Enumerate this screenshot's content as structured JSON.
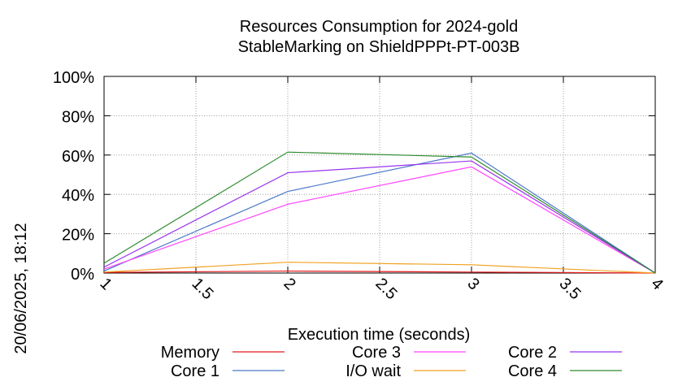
{
  "chart_data": {
    "type": "line",
    "title": "Resources Consumption for 2024-gold",
    "subtitle": "StableMarking on ShieldPPPt-PT-003B",
    "xlabel": "Execution time (seconds)",
    "ylabel": "",
    "timestamp": "20/06/2025, 18:12",
    "x": [
      1,
      2,
      3,
      4
    ],
    "xlim": [
      1,
      4
    ],
    "ylim": [
      0,
      100
    ],
    "xticks": [
      "1",
      "1.5",
      "2",
      "2.5",
      "3",
      "3.5",
      "4"
    ],
    "yticks": [
      "0%",
      "20%",
      "40%",
      "60%",
      "80%",
      "100%"
    ],
    "grid": true,
    "legend_position": "bottom",
    "series": [
      {
        "name": "Memory",
        "color": "#e41a1c",
        "values": [
          0.3,
          1.0,
          0.5,
          0
        ]
      },
      {
        "name": "Core 1",
        "color": "#4a78c9",
        "values": [
          1,
          41.5,
          61,
          0
        ]
      },
      {
        "name": "Core 3",
        "color": "#ff44ff",
        "values": [
          2,
          35,
          54,
          0
        ]
      },
      {
        "name": "I/O wait",
        "color": "#f0a020",
        "values": [
          0.5,
          5.5,
          4.2,
          0
        ]
      },
      {
        "name": "Core 2",
        "color": "#9933ee",
        "values": [
          3,
          51,
          57,
          0
        ]
      },
      {
        "name": "Core 4",
        "color": "#2e8b2e",
        "values": [
          5,
          61.5,
          59,
          0
        ]
      }
    ]
  }
}
